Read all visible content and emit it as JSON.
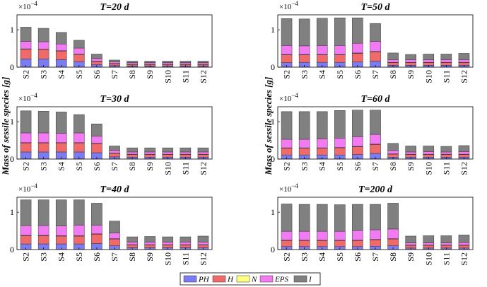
{
  "ylabel": "Mass of sessile species [g]",
  "exponent": "×10",
  "exponent_power": "−4",
  "legend": {
    "placement": "bottom-center",
    "entries": [
      {
        "name": "PH",
        "color": "#7b7bf2"
      },
      {
        "name": "H",
        "color": "#f06a6a"
      },
      {
        "name": "N",
        "color": "#ffff80"
      },
      {
        "name": "EPS",
        "color": "#f27af2"
      },
      {
        "name": "I",
        "color": "#808080"
      }
    ]
  },
  "chart_data": [
    {
      "type": "bar",
      "stacked": true,
      "title": "T=20 d",
      "ylim": [
        0,
        1.4
      ],
      "yticks": [
        0,
        1
      ],
      "categories": [
        "S2",
        "S3",
        "S4",
        "S5",
        "S6",
        "S7",
        "S8",
        "S9",
        "S10",
        "S11",
        "S12"
      ],
      "series": [
        {
          "name": "PH",
          "values": [
            0.22,
            0.22,
            0.2,
            0.15,
            0.07,
            0.04,
            0.03,
            0.03,
            0.03,
            0.03,
            0.03
          ]
        },
        {
          "name": "H",
          "values": [
            0.26,
            0.25,
            0.23,
            0.19,
            0.08,
            0.05,
            0.04,
            0.04,
            0.04,
            0.04,
            0.04
          ]
        },
        {
          "name": "N",
          "values": [
            0.01,
            0.01,
            0.01,
            0.01,
            0.01,
            0.01,
            0.01,
            0.01,
            0.01,
            0.01,
            0.01
          ]
        },
        {
          "name": "EPS",
          "values": [
            0.2,
            0.2,
            0.18,
            0.16,
            0.07,
            0.04,
            0.04,
            0.04,
            0.04,
            0.04,
            0.04
          ]
        },
        {
          "name": "I",
          "values": [
            0.38,
            0.36,
            0.31,
            0.21,
            0.12,
            0.05,
            0.04,
            0.04,
            0.04,
            0.04,
            0.04
          ]
        }
      ]
    },
    {
      "type": "bar",
      "stacked": true,
      "title": "T=50 d",
      "ylim": [
        0,
        1.4
      ],
      "yticks": [
        0,
        1
      ],
      "categories": [
        "S2",
        "S3",
        "S4",
        "S5",
        "S6",
        "S7",
        "S8",
        "S9",
        "S10",
        "S11",
        "S12"
      ],
      "series": [
        {
          "name": "PH",
          "values": [
            0.12,
            0.13,
            0.13,
            0.13,
            0.14,
            0.16,
            0.05,
            0.05,
            0.05,
            0.05,
            0.05
          ]
        },
        {
          "name": "H",
          "values": [
            0.21,
            0.2,
            0.2,
            0.2,
            0.23,
            0.25,
            0.07,
            0.07,
            0.07,
            0.07,
            0.07
          ]
        },
        {
          "name": "N",
          "values": [
            0.01,
            0.01,
            0.01,
            0.01,
            0.01,
            0.01,
            0.01,
            0.01,
            0.01,
            0.01,
            0.01
          ]
        },
        {
          "name": "EPS",
          "values": [
            0.24,
            0.23,
            0.24,
            0.24,
            0.26,
            0.27,
            0.07,
            0.07,
            0.07,
            0.07,
            0.07
          ]
        },
        {
          "name": "I",
          "values": [
            0.72,
            0.72,
            0.73,
            0.74,
            0.68,
            0.48,
            0.18,
            0.14,
            0.15,
            0.15,
            0.17
          ]
        }
      ]
    },
    {
      "type": "bar",
      "stacked": true,
      "title": "T=30 d",
      "ylim": [
        0,
        1.4
      ],
      "yticks": [
        0,
        1
      ],
      "categories": [
        "S2",
        "S3",
        "S4",
        "S5",
        "S6",
        "S7",
        "S8",
        "S9",
        "S10",
        "S11",
        "S12"
      ],
      "series": [
        {
          "name": "PH",
          "values": [
            0.19,
            0.19,
            0.19,
            0.19,
            0.17,
            0.06,
            0.05,
            0.05,
            0.05,
            0.05,
            0.05
          ]
        },
        {
          "name": "H",
          "values": [
            0.24,
            0.24,
            0.24,
            0.24,
            0.24,
            0.09,
            0.07,
            0.07,
            0.07,
            0.07,
            0.07
          ]
        },
        {
          "name": "N",
          "values": [
            0.01,
            0.01,
            0.01,
            0.01,
            0.01,
            0.01,
            0.01,
            0.01,
            0.01,
            0.01,
            0.01
          ]
        },
        {
          "name": "EPS",
          "values": [
            0.26,
            0.26,
            0.25,
            0.26,
            0.19,
            0.07,
            0.06,
            0.06,
            0.06,
            0.06,
            0.06
          ]
        },
        {
          "name": "I",
          "values": [
            0.59,
            0.58,
            0.57,
            0.49,
            0.33,
            0.12,
            0.11,
            0.11,
            0.11,
            0.11,
            0.11
          ]
        }
      ]
    },
    {
      "type": "bar",
      "stacked": true,
      "title": "T=60 d",
      "ylim": [
        0,
        1.4
      ],
      "yticks": [
        0,
        1
      ],
      "categories": [
        "S2",
        "S3",
        "S4",
        "S5",
        "S6",
        "S7",
        "S8",
        "S9",
        "S10",
        "S11",
        "S12"
      ],
      "series": [
        {
          "name": "PH",
          "values": [
            0.11,
            0.11,
            0.11,
            0.11,
            0.12,
            0.15,
            0.05,
            0.05,
            0.05,
            0.05,
            0.05
          ]
        },
        {
          "name": "H",
          "values": [
            0.18,
            0.18,
            0.18,
            0.19,
            0.21,
            0.24,
            0.08,
            0.07,
            0.07,
            0.07,
            0.07
          ]
        },
        {
          "name": "N",
          "values": [
            0.01,
            0.01,
            0.01,
            0.01,
            0.01,
            0.01,
            0.01,
            0.01,
            0.01,
            0.01,
            0.01
          ]
        },
        {
          "name": "EPS",
          "values": [
            0.23,
            0.23,
            0.24,
            0.25,
            0.26,
            0.26,
            0.09,
            0.06,
            0.07,
            0.06,
            0.07
          ]
        },
        {
          "name": "I",
          "values": [
            0.74,
            0.74,
            0.73,
            0.74,
            0.71,
            0.65,
            0.19,
            0.16,
            0.15,
            0.15,
            0.16
          ]
        }
      ]
    },
    {
      "type": "bar",
      "stacked": true,
      "title": "T=40 d",
      "ylim": [
        0,
        1.4
      ],
      "yticks": [
        0,
        1
      ],
      "categories": [
        "S2",
        "S3",
        "S4",
        "S5",
        "S6",
        "S7",
        "S8",
        "S9",
        "S10",
        "S11",
        "S12"
      ],
      "series": [
        {
          "name": "PH",
          "values": [
            0.15,
            0.15,
            0.15,
            0.15,
            0.16,
            0.1,
            0.05,
            0.05,
            0.05,
            0.05,
            0.05
          ]
        },
        {
          "name": "H",
          "values": [
            0.22,
            0.22,
            0.21,
            0.21,
            0.25,
            0.18,
            0.07,
            0.07,
            0.07,
            0.07,
            0.07
          ]
        },
        {
          "name": "N",
          "values": [
            0.01,
            0.01,
            0.01,
            0.01,
            0.01,
            0.01,
            0.01,
            0.01,
            0.01,
            0.01,
            0.01
          ]
        },
        {
          "name": "EPS",
          "values": [
            0.26,
            0.26,
            0.26,
            0.28,
            0.23,
            0.15,
            0.07,
            0.07,
            0.07,
            0.07,
            0.07
          ]
        },
        {
          "name": "I",
          "values": [
            0.69,
            0.69,
            0.7,
            0.68,
            0.59,
            0.32,
            0.14,
            0.15,
            0.14,
            0.14,
            0.16
          ]
        }
      ]
    },
    {
      "type": "bar",
      "stacked": true,
      "title": "T=200 d",
      "ylim": [
        0,
        1.4
      ],
      "yticks": [
        0,
        1
      ],
      "categories": [
        "S2",
        "S3",
        "S4",
        "S5",
        "S6",
        "S7",
        "S8",
        "S9",
        "S10",
        "S11",
        "S12"
      ],
      "series": [
        {
          "name": "PH",
          "values": [
            0.08,
            0.08,
            0.08,
            0.08,
            0.08,
            0.09,
            0.1,
            0.04,
            0.04,
            0.04,
            0.04
          ]
        },
        {
          "name": "H",
          "values": [
            0.16,
            0.16,
            0.16,
            0.16,
            0.16,
            0.17,
            0.18,
            0.07,
            0.07,
            0.07,
            0.07
          ]
        },
        {
          "name": "N",
          "values": [
            0.01,
            0.01,
            0.01,
            0.01,
            0.01,
            0.01,
            0.01,
            0.01,
            0.01,
            0.01,
            0.01
          ]
        },
        {
          "name": "EPS",
          "values": [
            0.24,
            0.24,
            0.24,
            0.24,
            0.26,
            0.26,
            0.26,
            0.06,
            0.06,
            0.06,
            0.07
          ]
        },
        {
          "name": "I",
          "values": [
            0.73,
            0.72,
            0.72,
            0.71,
            0.7,
            0.68,
            0.69,
            0.18,
            0.19,
            0.19,
            0.2
          ]
        }
      ]
    }
  ]
}
